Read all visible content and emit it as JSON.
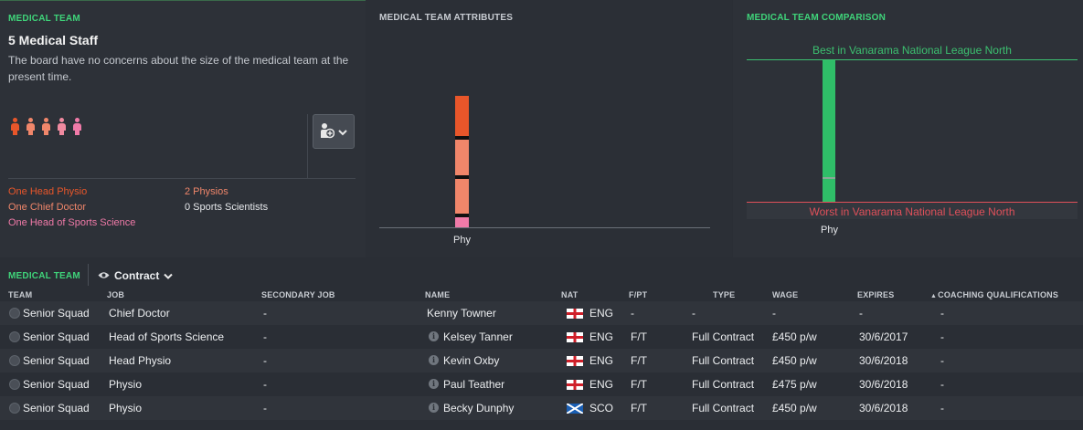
{
  "medical_team_panel": {
    "title": "MEDICAL TEAM",
    "headline": "5 Medical Staff",
    "description": "The board have no concerns about the size of the medical team at the present time.",
    "staff_icon_colors": [
      "#e8562a",
      "#f0866a",
      "#f0866a",
      "#f08aa0",
      "#f07aa8"
    ],
    "roles_left": [
      {
        "label": "One Head Physio",
        "color": "#e8562a"
      },
      {
        "label": "One Chief Doctor",
        "color": "#f0866a"
      },
      {
        "label": "One Head of Sports Science",
        "color": "#f07aa8"
      }
    ],
    "roles_right": [
      {
        "label": "2 Physios",
        "color": "#f0866a"
      },
      {
        "label": "0 Sports Scientists",
        "color": "#e6e8eb"
      }
    ],
    "add_staff_icon": "medical-staff-icon"
  },
  "attributes_panel": {
    "title": "MEDICAL TEAM ATTRIBUTES",
    "x_label": "Phy"
  },
  "comparison_panel": {
    "title": "MEDICAL TEAM COMPARISON",
    "best_label": "Best in Vanarama National League North",
    "worst_label": "Worst in Vanarama National League North",
    "x_label": "Phy"
  },
  "staff_list": {
    "section_title": "MEDICAL TEAM",
    "view_label": "Contract",
    "view_icon": "eye-icon",
    "columns": [
      "TEAM",
      "JOB",
      "SECONDARY JOB",
      "NAME",
      "NAT",
      "F/PT",
      "TYPE",
      "WAGE",
      "EXPIRES",
      "COACHING QUALIFICATIONS"
    ],
    "sort_indicator": "▲",
    "rows": [
      {
        "team": "Senior Squad",
        "job": "Chief Doctor",
        "secondary": "-",
        "name": "Kenny Towner",
        "info": false,
        "flag": "eng",
        "nat": "ENG",
        "fpt": "-",
        "type": "-",
        "wage": "-",
        "expires": "-",
        "quals": "-"
      },
      {
        "team": "Senior Squad",
        "job": "Head of Sports Science",
        "secondary": "-",
        "name": "Kelsey Tanner",
        "info": true,
        "flag": "eng",
        "nat": "ENG",
        "fpt": "F/T",
        "type": "Full Contract",
        "wage": "£450 p/w",
        "expires": "30/6/2017",
        "quals": "-"
      },
      {
        "team": "Senior Squad",
        "job": "Head Physio",
        "secondary": "-",
        "name": "Kevin Oxby",
        "info": true,
        "flag": "eng",
        "nat": "ENG",
        "fpt": "F/T",
        "type": "Full Contract",
        "wage": "£450 p/w",
        "expires": "30/6/2018",
        "quals": "-"
      },
      {
        "team": "Senior Squad",
        "job": "Physio",
        "secondary": "-",
        "name": "Paul Teather",
        "info": true,
        "flag": "eng",
        "nat": "ENG",
        "fpt": "F/T",
        "type": "Full Contract",
        "wage": "£475 p/w",
        "expires": "30/6/2018",
        "quals": "-"
      },
      {
        "team": "Senior Squad",
        "job": "Physio",
        "secondary": "-",
        "name": "Becky Dunphy",
        "info": true,
        "flag": "sco",
        "nat": "SCO",
        "fpt": "F/T",
        "type": "Full Contract",
        "wage": "£450 p/w",
        "expires": "30/6/2018",
        "quals": "-"
      }
    ]
  },
  "colors": {
    "accent_green": "#3fd47a",
    "best_line": "#3cc070",
    "worst_line": "#e0505a"
  }
}
